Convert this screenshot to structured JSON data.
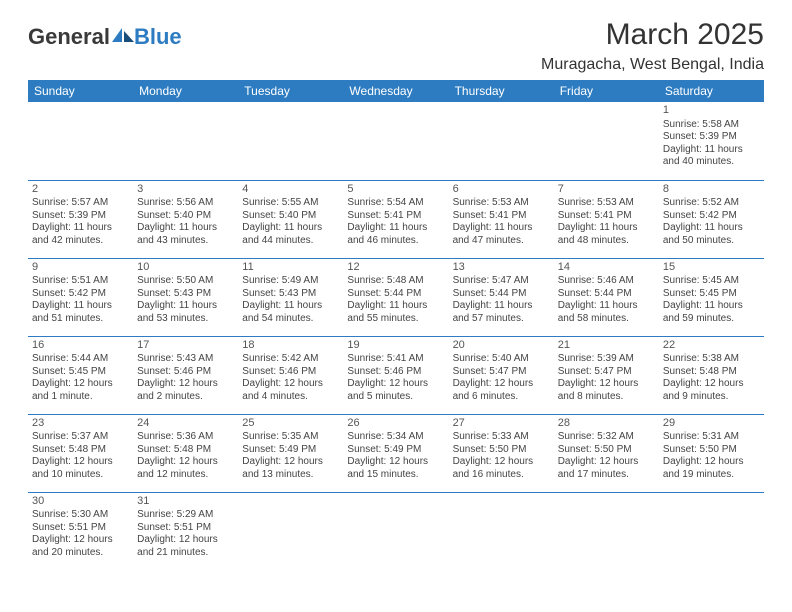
{
  "logo": {
    "text1": "General",
    "text2": "Blue"
  },
  "title": "March 2025",
  "subtitle": "Muragacha, West Bengal, India",
  "colors": {
    "header_bg": "#2d7cc1",
    "header_fg": "#ffffff",
    "rule": "#2d7cc1",
    "text": "#444444",
    "page_bg": "#ffffff"
  },
  "weekdays": [
    "Sunday",
    "Monday",
    "Tuesday",
    "Wednesday",
    "Thursday",
    "Friday",
    "Saturday"
  ],
  "weeks": [
    [
      null,
      null,
      null,
      null,
      null,
      null,
      {
        "n": "1",
        "sr": "Sunrise: 5:58 AM",
        "ss": "Sunset: 5:39 PM",
        "dl": "Daylight: 11 hours and 40 minutes."
      }
    ],
    [
      {
        "n": "2",
        "sr": "Sunrise: 5:57 AM",
        "ss": "Sunset: 5:39 PM",
        "dl": "Daylight: 11 hours and 42 minutes."
      },
      {
        "n": "3",
        "sr": "Sunrise: 5:56 AM",
        "ss": "Sunset: 5:40 PM",
        "dl": "Daylight: 11 hours and 43 minutes."
      },
      {
        "n": "4",
        "sr": "Sunrise: 5:55 AM",
        "ss": "Sunset: 5:40 PM",
        "dl": "Daylight: 11 hours and 44 minutes."
      },
      {
        "n": "5",
        "sr": "Sunrise: 5:54 AM",
        "ss": "Sunset: 5:41 PM",
        "dl": "Daylight: 11 hours and 46 minutes."
      },
      {
        "n": "6",
        "sr": "Sunrise: 5:53 AM",
        "ss": "Sunset: 5:41 PM",
        "dl": "Daylight: 11 hours and 47 minutes."
      },
      {
        "n": "7",
        "sr": "Sunrise: 5:53 AM",
        "ss": "Sunset: 5:41 PM",
        "dl": "Daylight: 11 hours and 48 minutes."
      },
      {
        "n": "8",
        "sr": "Sunrise: 5:52 AM",
        "ss": "Sunset: 5:42 PM",
        "dl": "Daylight: 11 hours and 50 minutes."
      }
    ],
    [
      {
        "n": "9",
        "sr": "Sunrise: 5:51 AM",
        "ss": "Sunset: 5:42 PM",
        "dl": "Daylight: 11 hours and 51 minutes."
      },
      {
        "n": "10",
        "sr": "Sunrise: 5:50 AM",
        "ss": "Sunset: 5:43 PM",
        "dl": "Daylight: 11 hours and 53 minutes."
      },
      {
        "n": "11",
        "sr": "Sunrise: 5:49 AM",
        "ss": "Sunset: 5:43 PM",
        "dl": "Daylight: 11 hours and 54 minutes."
      },
      {
        "n": "12",
        "sr": "Sunrise: 5:48 AM",
        "ss": "Sunset: 5:44 PM",
        "dl": "Daylight: 11 hours and 55 minutes."
      },
      {
        "n": "13",
        "sr": "Sunrise: 5:47 AM",
        "ss": "Sunset: 5:44 PM",
        "dl": "Daylight: 11 hours and 57 minutes."
      },
      {
        "n": "14",
        "sr": "Sunrise: 5:46 AM",
        "ss": "Sunset: 5:44 PM",
        "dl": "Daylight: 11 hours and 58 minutes."
      },
      {
        "n": "15",
        "sr": "Sunrise: 5:45 AM",
        "ss": "Sunset: 5:45 PM",
        "dl": "Daylight: 11 hours and 59 minutes."
      }
    ],
    [
      {
        "n": "16",
        "sr": "Sunrise: 5:44 AM",
        "ss": "Sunset: 5:45 PM",
        "dl": "Daylight: 12 hours and 1 minute."
      },
      {
        "n": "17",
        "sr": "Sunrise: 5:43 AM",
        "ss": "Sunset: 5:46 PM",
        "dl": "Daylight: 12 hours and 2 minutes."
      },
      {
        "n": "18",
        "sr": "Sunrise: 5:42 AM",
        "ss": "Sunset: 5:46 PM",
        "dl": "Daylight: 12 hours and 4 minutes."
      },
      {
        "n": "19",
        "sr": "Sunrise: 5:41 AM",
        "ss": "Sunset: 5:46 PM",
        "dl": "Daylight: 12 hours and 5 minutes."
      },
      {
        "n": "20",
        "sr": "Sunrise: 5:40 AM",
        "ss": "Sunset: 5:47 PM",
        "dl": "Daylight: 12 hours and 6 minutes."
      },
      {
        "n": "21",
        "sr": "Sunrise: 5:39 AM",
        "ss": "Sunset: 5:47 PM",
        "dl": "Daylight: 12 hours and 8 minutes."
      },
      {
        "n": "22",
        "sr": "Sunrise: 5:38 AM",
        "ss": "Sunset: 5:48 PM",
        "dl": "Daylight: 12 hours and 9 minutes."
      }
    ],
    [
      {
        "n": "23",
        "sr": "Sunrise: 5:37 AM",
        "ss": "Sunset: 5:48 PM",
        "dl": "Daylight: 12 hours and 10 minutes."
      },
      {
        "n": "24",
        "sr": "Sunrise: 5:36 AM",
        "ss": "Sunset: 5:48 PM",
        "dl": "Daylight: 12 hours and 12 minutes."
      },
      {
        "n": "25",
        "sr": "Sunrise: 5:35 AM",
        "ss": "Sunset: 5:49 PM",
        "dl": "Daylight: 12 hours and 13 minutes."
      },
      {
        "n": "26",
        "sr": "Sunrise: 5:34 AM",
        "ss": "Sunset: 5:49 PM",
        "dl": "Daylight: 12 hours and 15 minutes."
      },
      {
        "n": "27",
        "sr": "Sunrise: 5:33 AM",
        "ss": "Sunset: 5:50 PM",
        "dl": "Daylight: 12 hours and 16 minutes."
      },
      {
        "n": "28",
        "sr": "Sunrise: 5:32 AM",
        "ss": "Sunset: 5:50 PM",
        "dl": "Daylight: 12 hours and 17 minutes."
      },
      {
        "n": "29",
        "sr": "Sunrise: 5:31 AM",
        "ss": "Sunset: 5:50 PM",
        "dl": "Daylight: 12 hours and 19 minutes."
      }
    ],
    [
      {
        "n": "30",
        "sr": "Sunrise: 5:30 AM",
        "ss": "Sunset: 5:51 PM",
        "dl": "Daylight: 12 hours and 20 minutes."
      },
      {
        "n": "31",
        "sr": "Sunrise: 5:29 AM",
        "ss": "Sunset: 5:51 PM",
        "dl": "Daylight: 12 hours and 21 minutes."
      },
      null,
      null,
      null,
      null,
      null
    ]
  ]
}
